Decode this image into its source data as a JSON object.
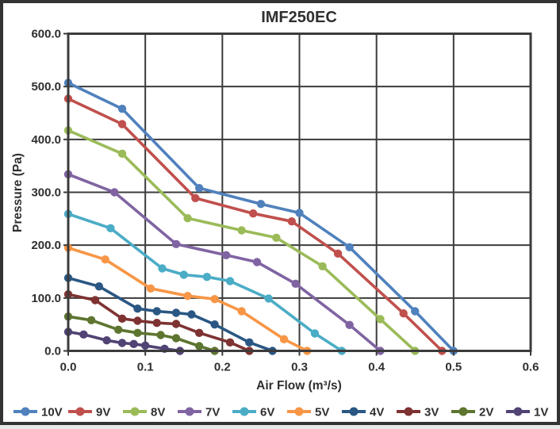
{
  "chart_data": {
    "type": "line",
    "title": "IMF250EC",
    "xlabel": "Air Flow (m³/s)",
    "ylabel": "Pressure (Pa)",
    "xlim": [
      0,
      0.6
    ],
    "ylim": [
      0,
      600
    ],
    "x_ticks": [
      0,
      0.1,
      0.2,
      0.3,
      0.4,
      0.5,
      0.6
    ],
    "x_tick_labels": [
      "0.0",
      "0.1",
      "0.2",
      "0.3",
      "0.4",
      "0.5",
      "0.6"
    ],
    "y_ticks": [
      0,
      100,
      200,
      300,
      400,
      500,
      600
    ],
    "y_tick_labels": [
      "0.0",
      "100.0",
      "200.0",
      "300.0",
      "400.0",
      "500.0",
      "600.0"
    ],
    "grid": true,
    "marker": "circle",
    "legend_position": "bottom",
    "frame_color": "#3b3b3b",
    "grid_color": "#3b3b3b",
    "series": [
      {
        "name": "10V",
        "color": "#4F81BD",
        "points": [
          [
            0,
            507
          ],
          [
            0.07,
            458
          ],
          [
            0.17,
            308
          ],
          [
            0.25,
            278
          ],
          [
            0.3,
            261
          ],
          [
            0.365,
            196
          ],
          [
            0.45,
            75
          ],
          [
            0.5,
            0
          ]
        ]
      },
      {
        "name": "9V",
        "color": "#C0504D",
        "points": [
          [
            0,
            477
          ],
          [
            0.07,
            429
          ],
          [
            0.165,
            289
          ],
          [
            0.24,
            260
          ],
          [
            0.29,
            245
          ],
          [
            0.35,
            184
          ],
          [
            0.435,
            71
          ],
          [
            0.485,
            0
          ]
        ]
      },
      {
        "name": "8V",
        "color": "#9BBB59",
        "points": [
          [
            0,
            417
          ],
          [
            0.07,
            373
          ],
          [
            0.155,
            251
          ],
          [
            0.225,
            228
          ],
          [
            0.27,
            214
          ],
          [
            0.33,
            160
          ],
          [
            0.405,
            60
          ],
          [
            0.45,
            0
          ]
        ]
      },
      {
        "name": "7V",
        "color": "#8064A2",
        "points": [
          [
            0,
            334
          ],
          [
            0.06,
            300
          ],
          [
            0.14,
            202
          ],
          [
            0.205,
            181
          ],
          [
            0.245,
            168
          ],
          [
            0.295,
            127
          ],
          [
            0.365,
            49
          ],
          [
            0.405,
            0
          ]
        ]
      },
      {
        "name": "6V",
        "color": "#4BACC6",
        "points": [
          [
            0,
            259
          ],
          [
            0.055,
            232
          ],
          [
            0.122,
            156
          ],
          [
            0.15,
            144
          ],
          [
            0.18,
            140
          ],
          [
            0.21,
            132
          ],
          [
            0.26,
            99
          ],
          [
            0.32,
            33
          ],
          [
            0.355,
            0
          ]
        ]
      },
      {
        "name": "5V",
        "color": "#F79646",
        "points": [
          [
            0,
            195
          ],
          [
            0.048,
            173
          ],
          [
            0.107,
            118
          ],
          [
            0.155,
            104
          ],
          [
            0.19,
            98
          ],
          [
            0.225,
            75
          ],
          [
            0.28,
            22
          ],
          [
            0.31,
            0
          ]
        ]
      },
      {
        "name": "4V",
        "color": "#2A5783",
        "points": [
          [
            0,
            138
          ],
          [
            0.04,
            122
          ],
          [
            0.09,
            80
          ],
          [
            0.115,
            75
          ],
          [
            0.14,
            72
          ],
          [
            0.16,
            69
          ],
          [
            0.19,
            50
          ],
          [
            0.235,
            16
          ],
          [
            0.265,
            0
          ]
        ]
      },
      {
        "name": "3V",
        "color": "#7E3232",
        "points": [
          [
            0,
            107
          ],
          [
            0.035,
            96
          ],
          [
            0.07,
            61
          ],
          [
            0.09,
            57
          ],
          [
            0.115,
            53
          ],
          [
            0.14,
            51
          ],
          [
            0.17,
            34
          ],
          [
            0.21,
            16
          ],
          [
            0.235,
            0
          ]
        ]
      },
      {
        "name": "2V",
        "color": "#5E7530",
        "points": [
          [
            0,
            65
          ],
          [
            0.03,
            58
          ],
          [
            0.065,
            40
          ],
          [
            0.09,
            34
          ],
          [
            0.12,
            30
          ],
          [
            0.14,
            24
          ],
          [
            0.17,
            9
          ],
          [
            0.19,
            0
          ]
        ]
      },
      {
        "name": "1V",
        "color": "#514374",
        "points": [
          [
            0,
            36
          ],
          [
            0.02,
            31
          ],
          [
            0.05,
            20
          ],
          [
            0.07,
            15
          ],
          [
            0.085,
            13
          ],
          [
            0.1,
            10
          ],
          [
            0.125,
            4
          ],
          [
            0.145,
            0
          ]
        ]
      }
    ]
  }
}
